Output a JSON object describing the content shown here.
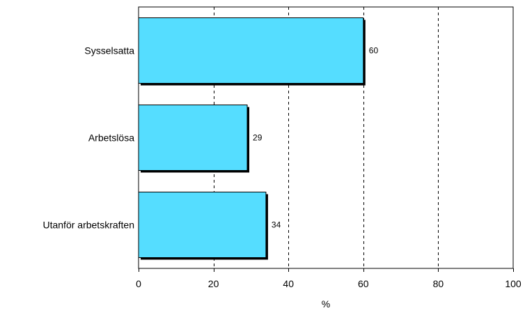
{
  "chart_data": {
    "type": "bar",
    "orientation": "horizontal",
    "categories": [
      "Sysselsatta",
      "Arbetslösa",
      "Utanför arbetskraften"
    ],
    "values": [
      60,
      29,
      34
    ],
    "data_labels": [
      "60",
      "29",
      "34"
    ],
    "xlabel": "%",
    "ylabel": "",
    "xlim": [
      0,
      100
    ],
    "xticks": [
      0,
      20,
      40,
      60,
      80,
      100
    ],
    "xtick_labels": [
      "0",
      "20",
      "40",
      "60",
      "80",
      "100"
    ],
    "grid": "vertical dashed",
    "legend": "none",
    "bar_color": "#55DDFF",
    "border_color": "#000000"
  }
}
